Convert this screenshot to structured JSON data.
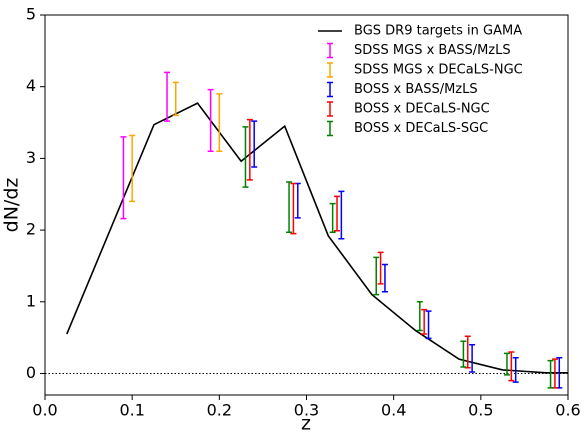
{
  "chart_data": {
    "type": "line",
    "xlabel": "z",
    "ylabel": "dN/dz",
    "xlim": [
      0,
      0.6
    ],
    "ylim": [
      -0.3,
      5
    ],
    "xticks": [
      {
        "value": 0,
        "label": "0.0"
      },
      0.1,
      0.2,
      0.3,
      0.4,
      0.5,
      0.6
    ],
    "yticks": [
      0,
      1,
      2,
      3,
      4,
      5
    ],
    "reference_line": 0,
    "legend": "upper right",
    "series": [
      {
        "name": "BGS DR9 targets in GAMA",
        "kind": "line",
        "color": "#000000",
        "x": [
          0.025,
          0.125,
          0.175,
          0.225,
          0.275,
          0.325,
          0.375,
          0.425,
          0.475,
          0.525,
          0.575,
          0.6
        ],
        "values": [
          0.55,
          3.47,
          3.77,
          2.96,
          3.45,
          1.92,
          1.1,
          0.6,
          0.2,
          0.05,
          0.01,
          0.01
        ]
      },
      {
        "name": "SDSS MGS x BASS/MzLS",
        "kind": "errorbar",
        "color": "#ff00ff",
        "x": [
          0.09,
          0.14,
          0.19
        ],
        "values": [
          2.73,
          3.86,
          3.53
        ],
        "errors": [
          0.57,
          0.34,
          0.43
        ]
      },
      {
        "name": "SDSS MGS x DECaLS-NGC",
        "kind": "errorbar",
        "color": "#ffa500",
        "x": [
          0.1,
          0.15,
          0.2
        ],
        "values": [
          2.86,
          3.83,
          3.5
        ],
        "errors": [
          0.46,
          0.23,
          0.4
        ]
      },
      {
        "name": "BOSS x BASS/MzLS",
        "kind": "errorbar",
        "color": "#0000ff",
        "x": [
          0.24,
          0.29,
          0.34,
          0.39,
          0.44,
          0.49,
          0.54,
          0.59
        ],
        "values": [
          3.2,
          2.41,
          2.21,
          1.33,
          0.68,
          0.21,
          0.05,
          0.01
        ],
        "errors": [
          0.32,
          0.24,
          0.33,
          0.19,
          0.19,
          0.19,
          0.17,
          0.21
        ]
      },
      {
        "name": "BOSS x DECaLS-NGC",
        "kind": "errorbar",
        "color": "#ff0000",
        "x": [
          0.235,
          0.285,
          0.335,
          0.385,
          0.435,
          0.485,
          0.535,
          0.585
        ],
        "values": [
          3.12,
          2.3,
          2.23,
          1.47,
          0.72,
          0.3,
          0.1,
          0
        ],
        "errors": [
          0.42,
          0.35,
          0.24,
          0.22,
          0.17,
          0.22,
          0.2,
          0.2
        ]
      },
      {
        "name": "BOSS x DECaLS-SGC",
        "kind": "errorbar",
        "color": "#008000",
        "x": [
          0.23,
          0.28,
          0.33,
          0.38,
          0.43,
          0.48,
          0.53,
          0.58
        ],
        "values": [
          3.02,
          2.32,
          2.17,
          1.36,
          0.8,
          0.27,
          0.13,
          -0.01
        ],
        "errors": [
          0.42,
          0.35,
          0.2,
          0.26,
          0.2,
          0.18,
          0.15,
          0.19
        ]
      }
    ]
  }
}
